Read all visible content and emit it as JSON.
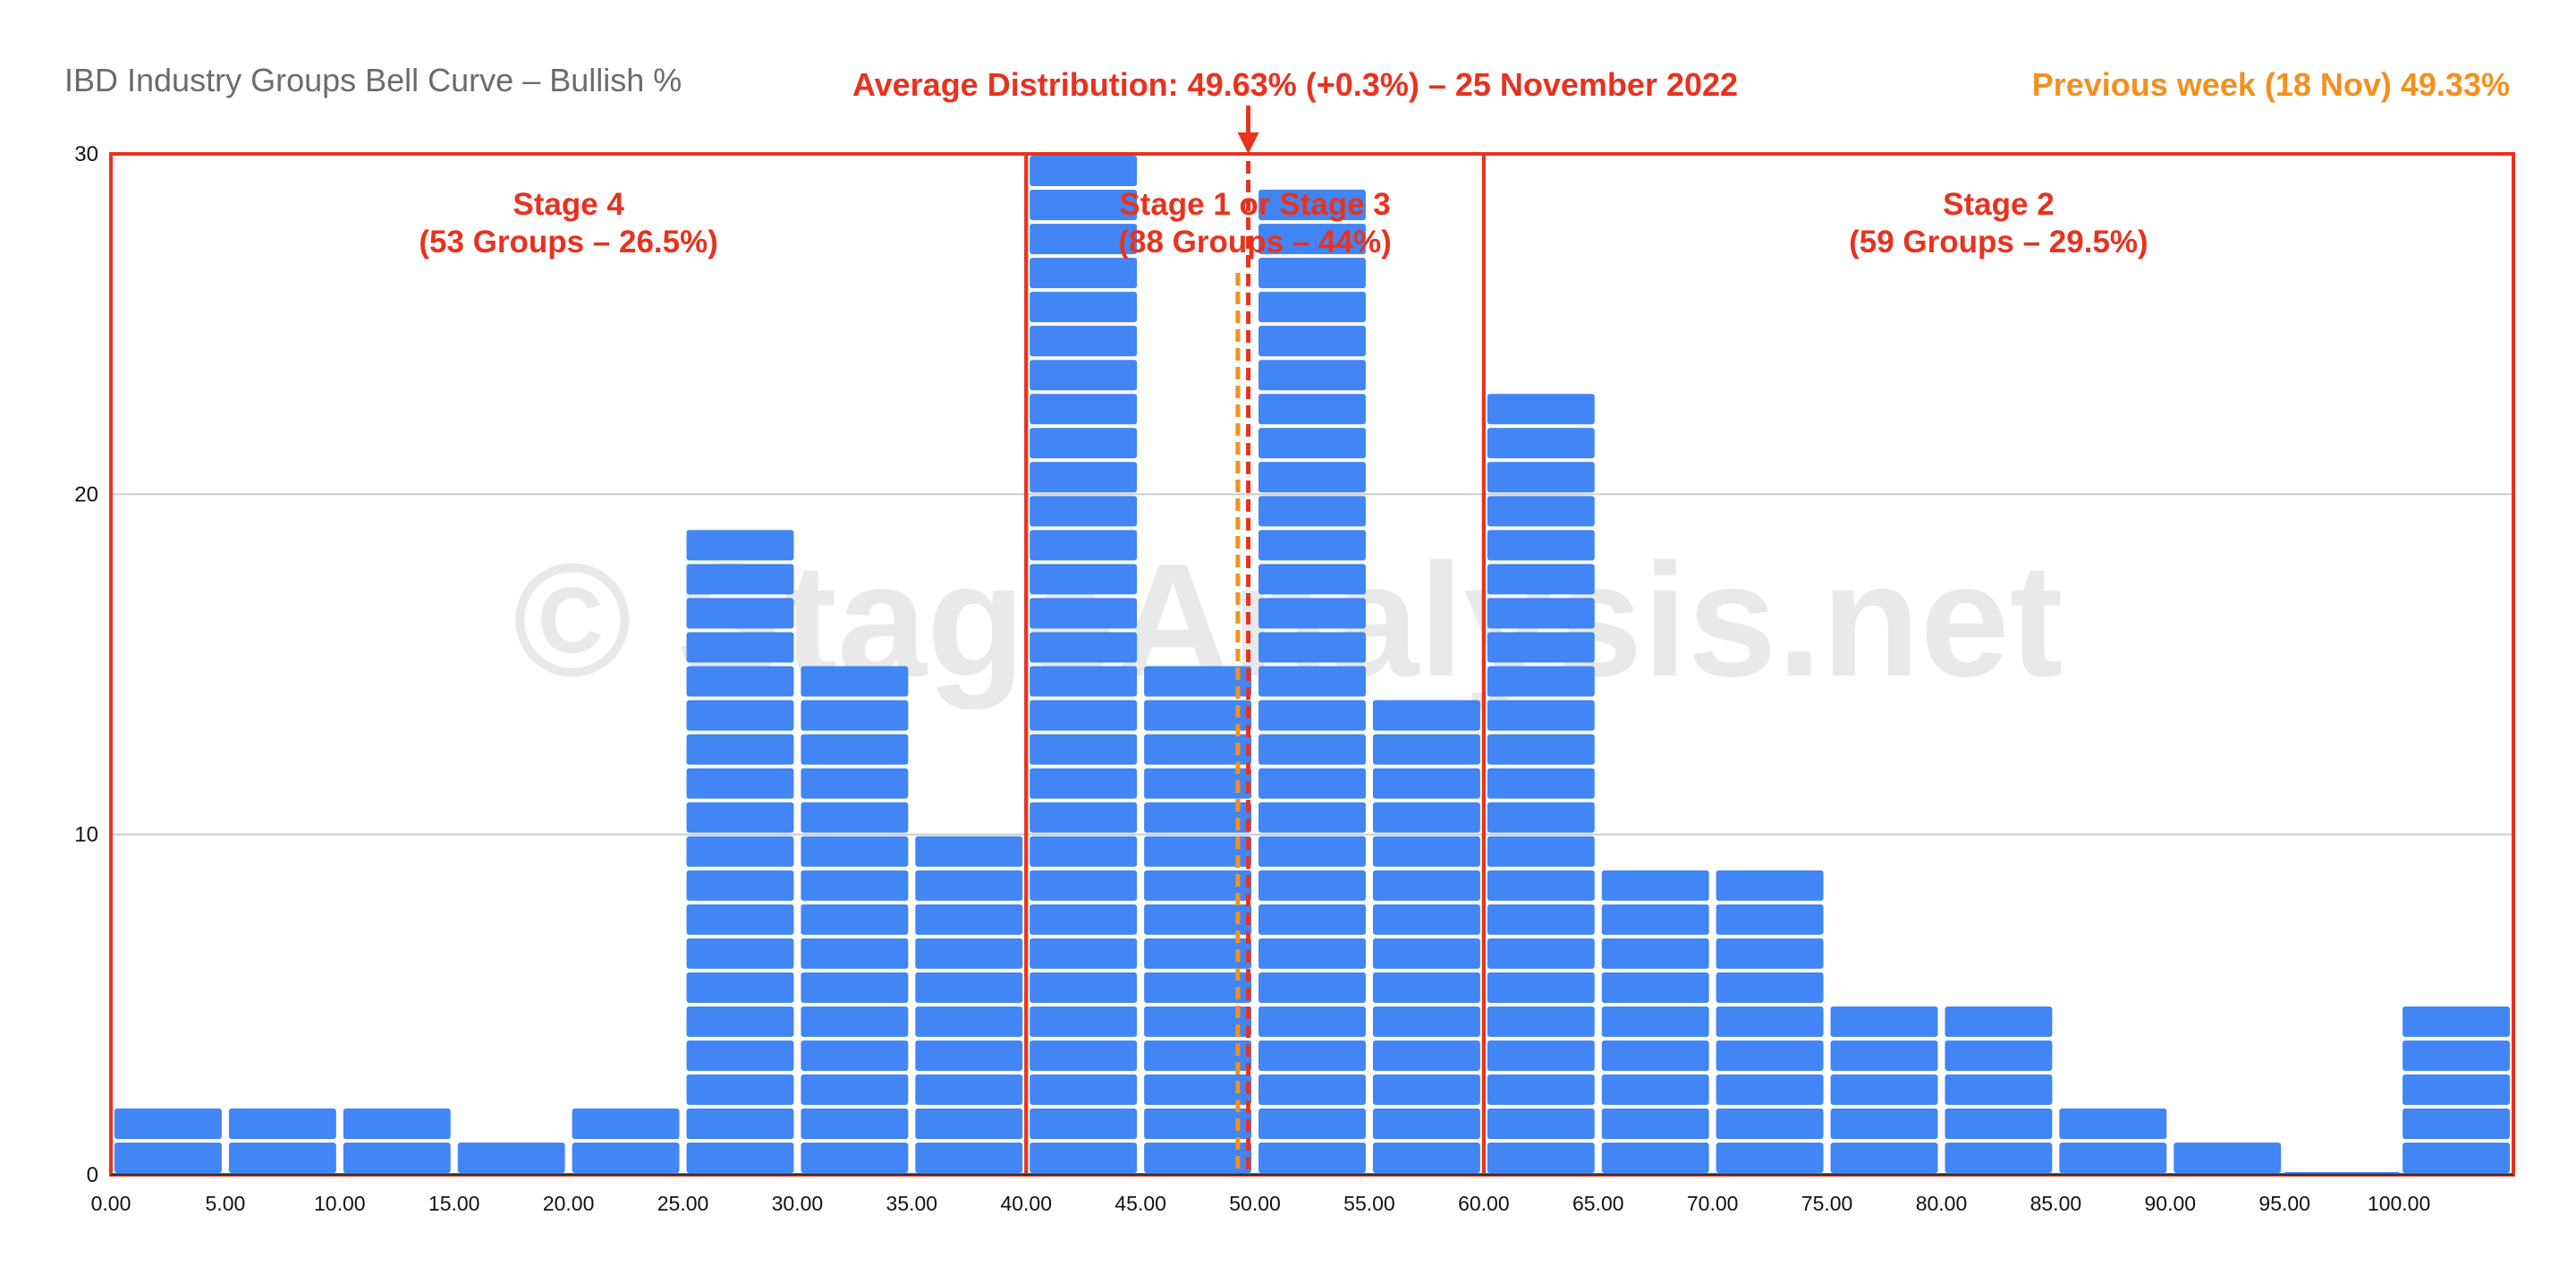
{
  "chart_data": {
    "type": "bar",
    "title": "IBD Industry Groups Bell Curve – Bullish %",
    "annotation_main": "Average Distribution: 49.63% (+0.3%) – 25 November 2022",
    "annotation_previous": "Previous week (18 Nov) 49.33%",
    "watermark": "© StageAnalysis.net",
    "bins": [
      {
        "from": 0,
        "to": 5,
        "value": 2
      },
      {
        "from": 5,
        "to": 10,
        "value": 2
      },
      {
        "from": 10,
        "to": 15,
        "value": 2
      },
      {
        "from": 15,
        "to": 20,
        "value": 1
      },
      {
        "from": 20,
        "to": 25,
        "value": 2
      },
      {
        "from": 25,
        "to": 30,
        "value": 19
      },
      {
        "from": 30,
        "to": 35,
        "value": 15
      },
      {
        "from": 35,
        "to": 40,
        "value": 10
      },
      {
        "from": 40,
        "to": 45,
        "value": 30
      },
      {
        "from": 45,
        "to": 50,
        "value": 15
      },
      {
        "from": 50,
        "to": 55,
        "value": 29
      },
      {
        "from": 55,
        "to": 60,
        "value": 14
      },
      {
        "from": 60,
        "to": 65,
        "value": 23
      },
      {
        "from": 65,
        "to": 70,
        "value": 9
      },
      {
        "from": 70,
        "to": 75,
        "value": 9
      },
      {
        "from": 75,
        "to": 80,
        "value": 5
      },
      {
        "from": 80,
        "to": 85,
        "value": 5
      },
      {
        "from": 85,
        "to": 90,
        "value": 2
      },
      {
        "from": 90,
        "to": 95,
        "value": 1
      },
      {
        "from": 95,
        "to": 100,
        "value": 0
      },
      {
        "from": 100,
        "to": 105,
        "value": 5
      }
    ],
    "x_ticks": [
      "0.00",
      "5.00",
      "10.00",
      "15.00",
      "20.00",
      "25.00",
      "30.00",
      "35.00",
      "40.00",
      "45.00",
      "50.00",
      "55.00",
      "60.00",
      "65.00",
      "70.00",
      "75.00",
      "80.00",
      "85.00",
      "90.00",
      "95.00",
      "100.00"
    ],
    "y_ticks": [
      "0",
      "10",
      "20",
      "30"
    ],
    "xlim": [
      0,
      105
    ],
    "ylim": [
      0,
      30
    ],
    "grid": true,
    "average_current": 49.63,
    "average_previous": 49.33,
    "stages": [
      {
        "name": "Stage 4",
        "detail": "(53 Groups – 26.5%)",
        "from": 0,
        "to": 40
      },
      {
        "name": "Stage 1 or Stage 3",
        "detail": "(88 Groups – 44%)",
        "from": 40,
        "to": 60
      },
      {
        "name": "Stage 2",
        "detail": "(59 Groups – 29.5%)",
        "from": 60,
        "to": 105
      }
    ],
    "colors": {
      "bar": "#4285f4",
      "bar_separator": "#ffffff",
      "stage_box": "#e8321e",
      "current_line": "#e8321e",
      "previous_line": "#f4901e",
      "grid": "#cccccc",
      "axis": "#333333"
    }
  }
}
